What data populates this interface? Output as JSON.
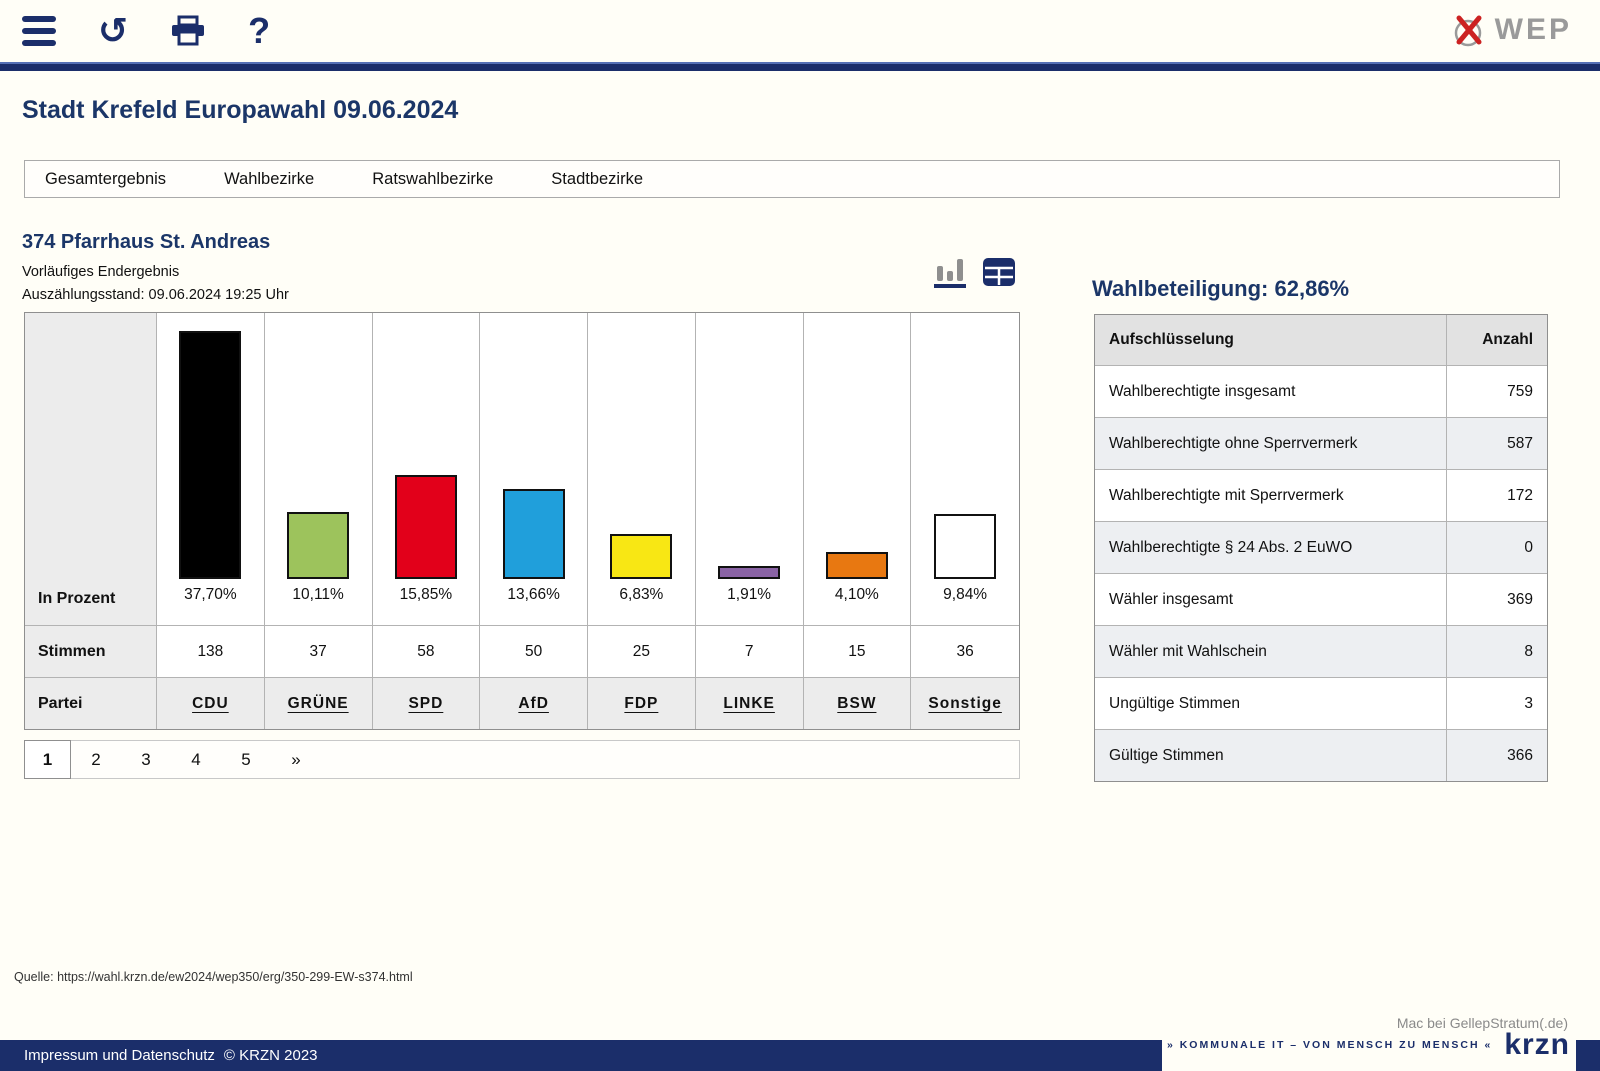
{
  "toolbar": {
    "brand": "WEP",
    "icons": [
      "menu-icon",
      "refresh-icon",
      "print-icon",
      "help-icon"
    ]
  },
  "page_title": "Stadt Krefeld Europawahl 09.06.2024",
  "tabs": [
    "Gesamtergebnis",
    "Wahlbezirke",
    "Ratswahlbezirke",
    "Stadtbezirke"
  ],
  "section": {
    "title": "374 Pfarrhaus St. Andreas",
    "status": "Vorläufiges Endergebnis",
    "count_state": "Auszählungsstand: 09.06.2024 19:25 Uhr"
  },
  "chart_data": {
    "type": "bar",
    "categories": [
      "CDU",
      "GRÜNE",
      "SPD",
      "AfD",
      "FDP",
      "LINKE",
      "BSW",
      "Sonstige"
    ],
    "series": [
      {
        "name": "In Prozent",
        "values": [
          37.7,
          10.11,
          15.85,
          13.66,
          6.83,
          1.91,
          4.1,
          9.84
        ],
        "labels": [
          "37,70%",
          "10,11%",
          "15,85%",
          "13,66%",
          "6,83%",
          "1,91%",
          "4,10%",
          "9,84%"
        ]
      },
      {
        "name": "Stimmen",
        "values": [
          138,
          37,
          58,
          50,
          25,
          7,
          15,
          36
        ]
      }
    ],
    "colors": [
      "#000000",
      "#9dc35c",
      "#e2001a",
      "#209fdb",
      "#f8e714",
      "#8a63a5",
      "#e87811",
      "#ffffff"
    ],
    "row_labels": {
      "percent": "In Prozent",
      "votes": "Stimmen",
      "party": "Partei"
    },
    "ylim": [
      0,
      37.7
    ],
    "grid": false,
    "legend": "none"
  },
  "pagination": {
    "pages": [
      "1",
      "2",
      "3",
      "4",
      "5",
      "»"
    ],
    "active": "1"
  },
  "turnout": {
    "title": "Wahlbeteiligung: 62,86%"
  },
  "stats_table": {
    "headers": [
      "Aufschlüsselung",
      "Anzahl"
    ],
    "rows": [
      [
        "Wahlberechtigte insgesamt",
        "759"
      ],
      [
        "Wahlberechtigte ohne Sperrvermerk",
        "587"
      ],
      [
        "Wahlberechtigte mit Sperrvermerk",
        "172"
      ],
      [
        "Wahlberechtigte § 24 Abs. 2 EuWO",
        "0"
      ],
      [
        "Wähler insgesamt",
        "369"
      ],
      [
        "Wähler mit Wahlschein",
        "8"
      ],
      [
        "Ungültige Stimmen",
        "3"
      ],
      [
        "Gültige Stimmen",
        "366"
      ]
    ]
  },
  "source": "Quelle: https://wahl.krzn.de/ew2024/wep350/erg/350-299-EW-s374.html",
  "footer": {
    "impressum": "Impressum und Datenschutz",
    "copyright": "© KRZN 2023",
    "mac": "Mac bei GellepStratum(.de)",
    "krzn_tagline": "» KOMMUNALE IT – VON MENSCH ZU MENSCH «",
    "krzn_logo": "krzn"
  },
  "colors": {
    "navy": "#1b2e6a",
    "heading_navy": "#1b3668",
    "ballot_red": "#cc2222",
    "brand_gray": "#9a9a9a"
  }
}
